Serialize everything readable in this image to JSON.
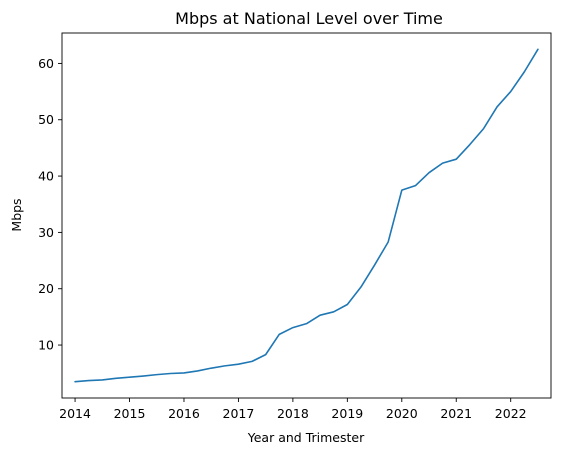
{
  "chart_data": {
    "type": "line",
    "title": "Mbps at National Level over Time",
    "xlabel": "Year and Trimester",
    "ylabel": "Mbps",
    "xlim": [
      2013.76,
      2022.74
    ],
    "ylim": [
      0.6,
      65.4
    ],
    "xticks": [
      2014,
      2015,
      2016,
      2017,
      2018,
      2019,
      2020,
      2021,
      2022
    ],
    "yticks": [
      10,
      20,
      30,
      40,
      50,
      60
    ],
    "grid": false,
    "legend": "none",
    "series_color": "#1f77b4",
    "series": [
      {
        "x": [
          2014.0,
          2014.25,
          2014.5,
          2014.75,
          2015.0,
          2015.25,
          2015.5,
          2015.75,
          2016.0,
          2016.25,
          2016.5,
          2016.75,
          2017.0,
          2017.25,
          2017.5,
          2017.75,
          2018.0,
          2018.25,
          2018.5,
          2018.75,
          2019.0,
          2019.25,
          2019.5,
          2019.75,
          2020.0,
          2020.25,
          2020.5,
          2020.75,
          2021.0,
          2021.25,
          2021.5,
          2021.75,
          2022.0,
          2022.25,
          2022.5
        ],
        "values": [
          3.5,
          3.7,
          3.8,
          4.1,
          4.3,
          4.5,
          4.75,
          4.95,
          5.05,
          5.4,
          5.9,
          6.3,
          6.6,
          7.1,
          8.3,
          11.9,
          13.1,
          13.8,
          15.3,
          15.9,
          17.2,
          20.3,
          24.2,
          28.3,
          37.5,
          38.3,
          40.6,
          42.3,
          43.0,
          45.6,
          48.4,
          52.3,
          55.0,
          58.5,
          62.5
        ]
      }
    ]
  }
}
